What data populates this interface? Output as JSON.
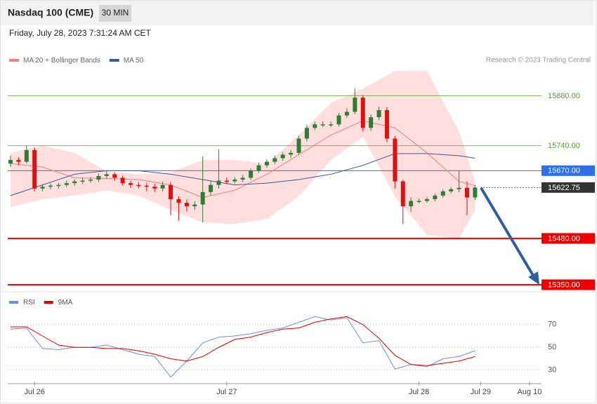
{
  "header": {
    "title": "Nasdaq 100 (CME)",
    "interval": "30 MIN",
    "date": "Friday, July 28, 2023 7:31:24 AM CET",
    "credit": "Research © 2023 Trading Central"
  },
  "chart_data": [
    {
      "type": "candlestick",
      "xlim": [
        -0.35,
        66.3
      ],
      "ylim": [
        15340,
        15960
      ],
      "up_color": "#2e7d32",
      "down_color": "#dd1111",
      "x": [
        0,
        1,
        2,
        3,
        4,
        5,
        6,
        7,
        8,
        9,
        10,
        11,
        12,
        13,
        14,
        15,
        16,
        17,
        18,
        19,
        20,
        21,
        22,
        23,
        24,
        25,
        26,
        27,
        28,
        29,
        30,
        31,
        32,
        33,
        34,
        35,
        36,
        37,
        38,
        39,
        40,
        41,
        42,
        43,
        44,
        45,
        46,
        47,
        48,
        49,
        50,
        51,
        52,
        53,
        54,
        55,
        56,
        57,
        58
      ],
      "open": [
        15690,
        15700,
        15695,
        15728,
        15620,
        15625,
        15628,
        15630,
        15635,
        15640,
        15642,
        15645,
        15655,
        15660,
        15650,
        15635,
        15630,
        15628,
        15625,
        15620,
        15630,
        15590,
        15580,
        15570,
        15575,
        15610,
        15630,
        15642,
        15640,
        15645,
        15650,
        15670,
        15685,
        15695,
        15705,
        15715,
        15720,
        15760,
        15790,
        15800,
        15800,
        15800,
        15825,
        15835,
        15875,
        15790,
        15820,
        15840,
        15760,
        15640,
        15570,
        15585,
        15585,
        15590,
        15600,
        15612,
        15618,
        15622,
        15595
      ],
      "high": [
        15712,
        15708,
        15740,
        15735,
        15632,
        15634,
        15636,
        15642,
        15646,
        15650,
        15652,
        15662,
        15670,
        15666,
        15656,
        15642,
        15638,
        15636,
        15634,
        15640,
        15638,
        15598,
        15590,
        15585,
        15710,
        15640,
        15730,
        15650,
        15652,
        15658,
        15676,
        15692,
        15702,
        15712,
        15722,
        15728,
        15768,
        15798,
        15808,
        15808,
        15808,
        15832,
        15845,
        15900,
        15882,
        15828,
        15850,
        15848,
        15768,
        15645,
        15595,
        15592,
        15596,
        15606,
        15618,
        15624,
        15670,
        15640,
        15630
      ],
      "low": [
        15680,
        15685,
        15690,
        15612,
        15612,
        15618,
        15620,
        15624,
        15628,
        15632,
        15636,
        15638,
        15648,
        15642,
        15628,
        15622,
        15620,
        15612,
        15610,
        15612,
        15545,
        15530,
        15555,
        15560,
        15525,
        15600,
        15620,
        15632,
        15634,
        15638,
        15644,
        15664,
        15678,
        15688,
        15698,
        15706,
        15714,
        15752,
        15784,
        15792,
        15792,
        15794,
        15818,
        15828,
        15780,
        15782,
        15812,
        15750,
        15620,
        15520,
        15555,
        15578,
        15580,
        15584,
        15594,
        15606,
        15610,
        15545,
        15588
      ],
      "close": [
        15700,
        15695,
        15728,
        15620,
        15625,
        15628,
        15630,
        15635,
        15640,
        15642,
        15645,
        15655,
        15660,
        15650,
        15635,
        15630,
        15628,
        15625,
        15620,
        15630,
        15590,
        15580,
        15570,
        15575,
        15610,
        15630,
        15642,
        15640,
        15645,
        15650,
        15670,
        15685,
        15695,
        15705,
        15715,
        15720,
        15760,
        15790,
        15800,
        15800,
        15800,
        15825,
        15835,
        15875,
        15790,
        15820,
        15840,
        15760,
        15640,
        15570,
        15585,
        15585,
        15590,
        15600,
        15612,
        15618,
        15622,
        15595,
        15622.75
      ],
      "overlays": [
        {
          "name": "MA 20 + Bollinger Bands",
          "color": "#f08080",
          "band_color": "#ffdede",
          "x": [
            0,
            4,
            8,
            12,
            16,
            20,
            24,
            28,
            32,
            36,
            40,
            44,
            48,
            52,
            56,
            58
          ],
          "values": [
            15690,
            15680,
            15650,
            15648,
            15645,
            15630,
            15595,
            15615,
            15660,
            15715,
            15770,
            15810,
            15790,
            15720,
            15640,
            15628
          ],
          "upper": [
            15720,
            15740,
            15720,
            15668,
            15660,
            15665,
            15700,
            15700,
            15690,
            15770,
            15860,
            15900,
            15950,
            15950,
            15780,
            15640
          ],
          "lower": [
            15568,
            15590,
            15600,
            15615,
            15600,
            15560,
            15525,
            15520,
            15535,
            15598,
            15700,
            15765,
            15598,
            15490,
            15480,
            15560
          ]
        },
        {
          "name": "MA 50",
          "color": "#3a5a9a",
          "x": [
            0,
            4,
            8,
            12,
            16,
            20,
            24,
            28,
            32,
            36,
            40,
            44,
            48,
            52,
            56,
            58
          ],
          "values": [
            15600,
            15630,
            15660,
            15670,
            15670,
            15660,
            15645,
            15630,
            15635,
            15645,
            15660,
            15685,
            15718,
            15718,
            15712,
            15705
          ]
        }
      ],
      "levels": [
        {
          "value": {
            "value": 15880,
            "label": "15880.00"
          },
          "color": "#5aa02c",
          "boxed": false,
          "line": "solid",
          "width": 0.8
        },
        {
          "value": {
            "value": 15740,
            "label": "15740.00"
          },
          "color": "#5aa02c",
          "boxed": false,
          "line": "solid",
          "width": 0.8
        },
        {
          "value": {
            "value": 15670,
            "label": "15670.00"
          },
          "color": "#2f6fe8",
          "boxed": true,
          "line": "solid",
          "width": 1
        },
        {
          "value": 15622.75,
          "color": "#333333",
          "boxed": true,
          "line": "dotted",
          "width": 1
        },
        {
          "value": {
            "value": 15480,
            "label": "15480.00"
          },
          "color": "#ee0000",
          "boxed": true,
          "line": "solid",
          "width": 2
        },
        {
          "value": {
            "value": 15350,
            "label": "15350.00"
          },
          "color": "#ee0000",
          "boxed": true,
          "line": "solid",
          "width": 2
        }
      ]
    },
    {
      "type": "line",
      "xlim": [
        -0.35,
        66.3
      ],
      "ylim": [
        20,
        84
      ],
      "yticks": [
        30,
        50,
        70
      ],
      "grid": true,
      "xticks": [
        {
          "value": 3,
          "label": "Jul 26"
        },
        {
          "value": 27,
          "label": "Jul 27"
        },
        {
          "value": 51,
          "label": "Jul 28"
        },
        {
          "value": 58.7,
          "label": "Jul 29"
        },
        {
          "value": 64.8,
          "label": "Aug 10"
        }
      ],
      "series": [
        {
          "name": "RSI",
          "color": "#6b8fe0",
          "x": [
            0,
            2,
            4,
            6,
            8,
            10,
            12,
            14,
            16,
            18,
            20,
            22,
            24,
            26,
            28,
            30,
            32,
            34,
            36,
            38,
            40,
            42,
            44,
            46,
            48,
            50,
            52,
            54,
            56,
            58
          ],
          "values": [
            66,
            67,
            49,
            48,
            50,
            50,
            52,
            48,
            44,
            42,
            24,
            38,
            54,
            59,
            60,
            62,
            65,
            67,
            72,
            77,
            74,
            76,
            54,
            56,
            31,
            35,
            33,
            40,
            42,
            47
          ]
        },
        {
          "name": "9MA",
          "color": "#e00000",
          "x": [
            0,
            2,
            4,
            6,
            8,
            10,
            12,
            14,
            16,
            18,
            20,
            22,
            24,
            26,
            28,
            30,
            32,
            34,
            36,
            38,
            40,
            42,
            44,
            46,
            48,
            50,
            52,
            54,
            56,
            58
          ],
          "values": [
            68,
            68,
            60,
            52,
            50,
            50,
            49,
            49,
            47,
            44,
            40,
            38,
            42,
            50,
            57,
            59,
            63,
            66,
            67,
            72,
            75,
            77,
            70,
            58,
            43,
            35,
            34,
            36,
            38,
            42
          ]
        }
      ]
    }
  ]
}
